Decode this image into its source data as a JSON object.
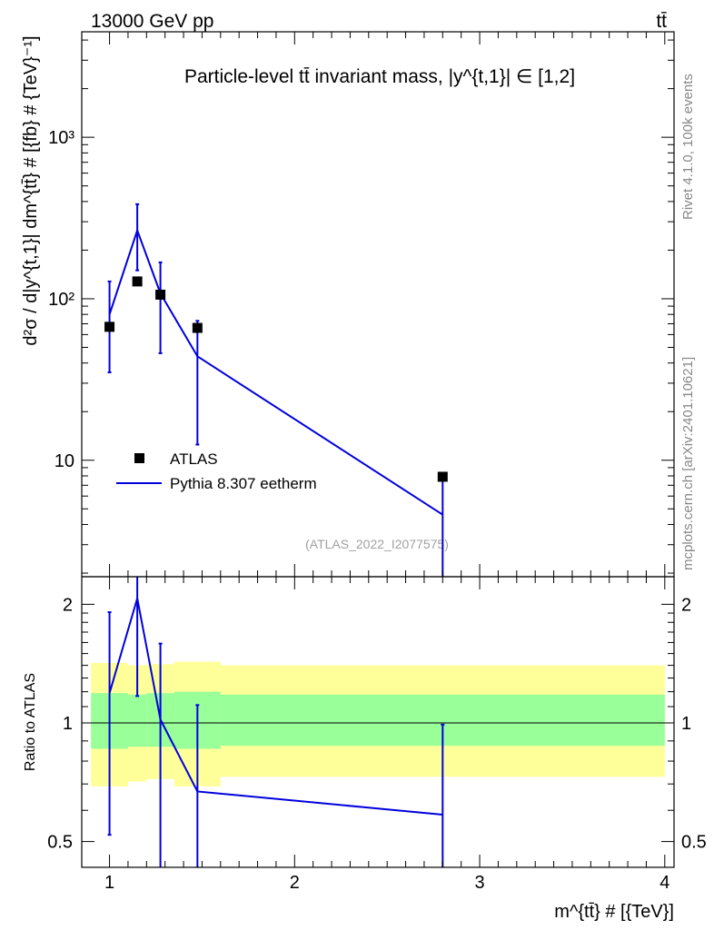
{
  "header": {
    "energy_label": "13000 GeV pp",
    "process_label": "tt̄"
  },
  "side_labels": {
    "rivet": "Rivet 4.1.0,  100k events",
    "mcplots": "mcplots.cern.ch [arXiv:2401.10621]"
  },
  "chart_data": [
    {
      "type": "scatter",
      "panel": "main",
      "title": "Particle-level tt̄ invariant mass, |y^{t,1}| ∈ [1,2]",
      "ylabel": "d²σ / d|y^{t,1}| dm^{tt̄} # [{fb} # {TeV}⁻¹]",
      "yscale": "log",
      "ylim": [
        1.9,
        4500
      ],
      "xlim": [
        0.85,
        4.05
      ],
      "yticks": [
        {
          "value": 10,
          "label": "10"
        },
        {
          "value": 100,
          "label": "10²"
        },
        {
          "value": 1000,
          "label": "10³"
        }
      ],
      "watermark": "(ATLAS_2022_I2077575)",
      "series": [
        {
          "name": "ATLAS",
          "kind": "data",
          "color": "#000000",
          "x": [
            1.0,
            1.15,
            1.275,
            1.475,
            2.8
          ],
          "y": [
            67,
            128,
            106,
            66,
            7.9
          ]
        },
        {
          "name": "Pythia 8.307 eetherm",
          "kind": "mc",
          "color": "#0000dd",
          "x": [
            1.0,
            1.15,
            1.275,
            1.475,
            2.8
          ],
          "y": [
            80,
            265,
            108,
            44,
            4.6
          ],
          "yerr_lo": [
            35,
            150,
            46,
            12.5,
            1.9
          ],
          "yerr_hi": [
            128,
            385,
            168,
            73,
            7.8
          ]
        }
      ]
    },
    {
      "type": "line",
      "panel": "ratio",
      "ylabel": "Ratio to ATLAS",
      "xlabel": "m^{tt̄} # [{TeV}]",
      "ylim": [
        0.43,
        2.35
      ],
      "xlim": [
        0.85,
        4.05
      ],
      "yticks": [
        {
          "value": 0.5,
          "label": "0.5"
        },
        {
          "value": 1,
          "label": "1"
        },
        {
          "value": 2,
          "label": "2"
        }
      ],
      "xticks": [
        {
          "value": 1,
          "label": "1"
        },
        {
          "value": 2,
          "label": "2"
        },
        {
          "value": 3,
          "label": "3"
        },
        {
          "value": 4,
          "label": "4"
        }
      ],
      "band_edges": [
        0.9,
        1.1,
        1.2,
        1.35,
        1.6,
        4.0
      ],
      "yellow_band": {
        "color": "#ffff99",
        "lo": [
          0.69,
          0.71,
          0.72,
          0.69,
          0.73
        ],
        "hi": [
          1.42,
          1.4,
          1.41,
          1.43,
          1.4
        ]
      },
      "green_band": {
        "color": "#99ff99",
        "lo": [
          0.86,
          0.87,
          0.87,
          0.86,
          0.875
        ],
        "hi": [
          1.19,
          1.18,
          1.19,
          1.2,
          1.18
        ]
      },
      "series": [
        {
          "name": "Pythia 8.307 eetherm / ATLAS",
          "color": "#0000dd",
          "x": [
            1.0,
            1.15,
            1.275,
            1.475,
            2.8
          ],
          "y": [
            1.19,
            2.07,
            1.02,
            0.67,
            0.585
          ],
          "yerr_lo": [
            0.52,
            1.17,
            0.38,
            0.19,
            0.24
          ],
          "yerr_hi": [
            1.91,
            3.0,
            1.59,
            1.11,
            0.99
          ]
        }
      ]
    }
  ]
}
